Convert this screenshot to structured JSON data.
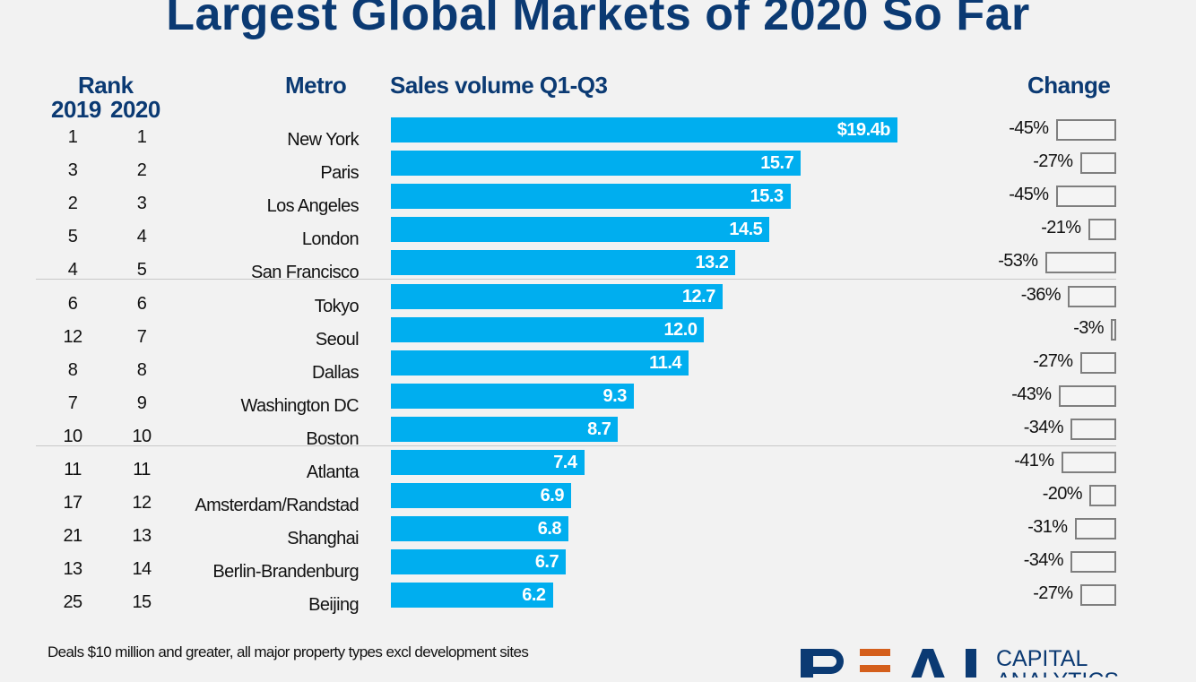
{
  "title": "Largest Global Markets of 2020 So Far",
  "headers": {
    "rank": "Rank",
    "y2019": "2019",
    "y2020": "2020",
    "metro": "Metro",
    "sales": "Sales volume Q1-Q3",
    "change": "Change"
  },
  "footnote": "Deals $10 million and greater, all major property types excl development sites",
  "logo": {
    "word": "REAL",
    "line1": "CAPITAL",
    "line2": "ANALYTICS"
  },
  "colors": {
    "title": "#0b3a73",
    "bar": "#00aeef",
    "change_box": "#7f7f7f",
    "logo_accent": "#d45f1c"
  },
  "chart_data": {
    "type": "bar",
    "orientation": "horizontal",
    "unit": "$b",
    "rows": [
      {
        "rank_2019": "1",
        "rank_2020": "1",
        "metro": "New York",
        "value": 19.4,
        "label": "$19.4b",
        "change": -45,
        "change_label": "-45%"
      },
      {
        "rank_2019": "3",
        "rank_2020": "2",
        "metro": "Paris",
        "value": 15.7,
        "label": "15.7",
        "change": -27,
        "change_label": "-27%"
      },
      {
        "rank_2019": "2",
        "rank_2020": "3",
        "metro": "Los Angeles",
        "value": 15.3,
        "label": "15.3",
        "change": -45,
        "change_label": "-45%"
      },
      {
        "rank_2019": "5",
        "rank_2020": "4",
        "metro": "London",
        "value": 14.5,
        "label": "14.5",
        "change": -21,
        "change_label": "-21%"
      },
      {
        "rank_2019": "4",
        "rank_2020": "5",
        "metro": "San Francisco",
        "value": 13.2,
        "label": "13.2",
        "change": -53,
        "change_label": "-53%"
      },
      {
        "rank_2019": "6",
        "rank_2020": "6",
        "metro": "Tokyo",
        "value": 12.7,
        "label": "12.7",
        "change": -36,
        "change_label": "-36%"
      },
      {
        "rank_2019": "12",
        "rank_2020": "7",
        "metro": "Seoul",
        "value": 12.0,
        "label": "12.0",
        "change": -3,
        "change_label": "-3%"
      },
      {
        "rank_2019": "8",
        "rank_2020": "8",
        "metro": "Dallas",
        "value": 11.4,
        "label": "11.4",
        "change": -27,
        "change_label": "-27%"
      },
      {
        "rank_2019": "7",
        "rank_2020": "9",
        "metro": "Washington DC",
        "value": 9.3,
        "label": "9.3",
        "change": -43,
        "change_label": "-43%"
      },
      {
        "rank_2019": "10",
        "rank_2020": "10",
        "metro": "Boston",
        "value": 8.7,
        "label": "8.7",
        "change": -34,
        "change_label": "-34%"
      },
      {
        "rank_2019": "11",
        "rank_2020": "11",
        "metro": "Atlanta",
        "value": 7.4,
        "label": "7.4",
        "change": -41,
        "change_label": "-41%"
      },
      {
        "rank_2019": "17",
        "rank_2020": "12",
        "metro": "Amsterdam/Randstad",
        "value": 6.9,
        "label": "6.9",
        "change": -20,
        "change_label": "-20%"
      },
      {
        "rank_2019": "21",
        "rank_2020": "13",
        "metro": "Shanghai",
        "value": 6.8,
        "label": "6.8",
        "change": -31,
        "change_label": "-31%"
      },
      {
        "rank_2019": "13",
        "rank_2020": "14",
        "metro": "Berlin-Brandenburg",
        "value": 6.7,
        "label": "6.7",
        "change": -34,
        "change_label": "-34%"
      },
      {
        "rank_2019": "25",
        "rank_2020": "15",
        "metro": "Beijing",
        "value": 6.2,
        "label": "6.2",
        "change": -27,
        "change_label": "-27%"
      }
    ],
    "grid": false
  }
}
